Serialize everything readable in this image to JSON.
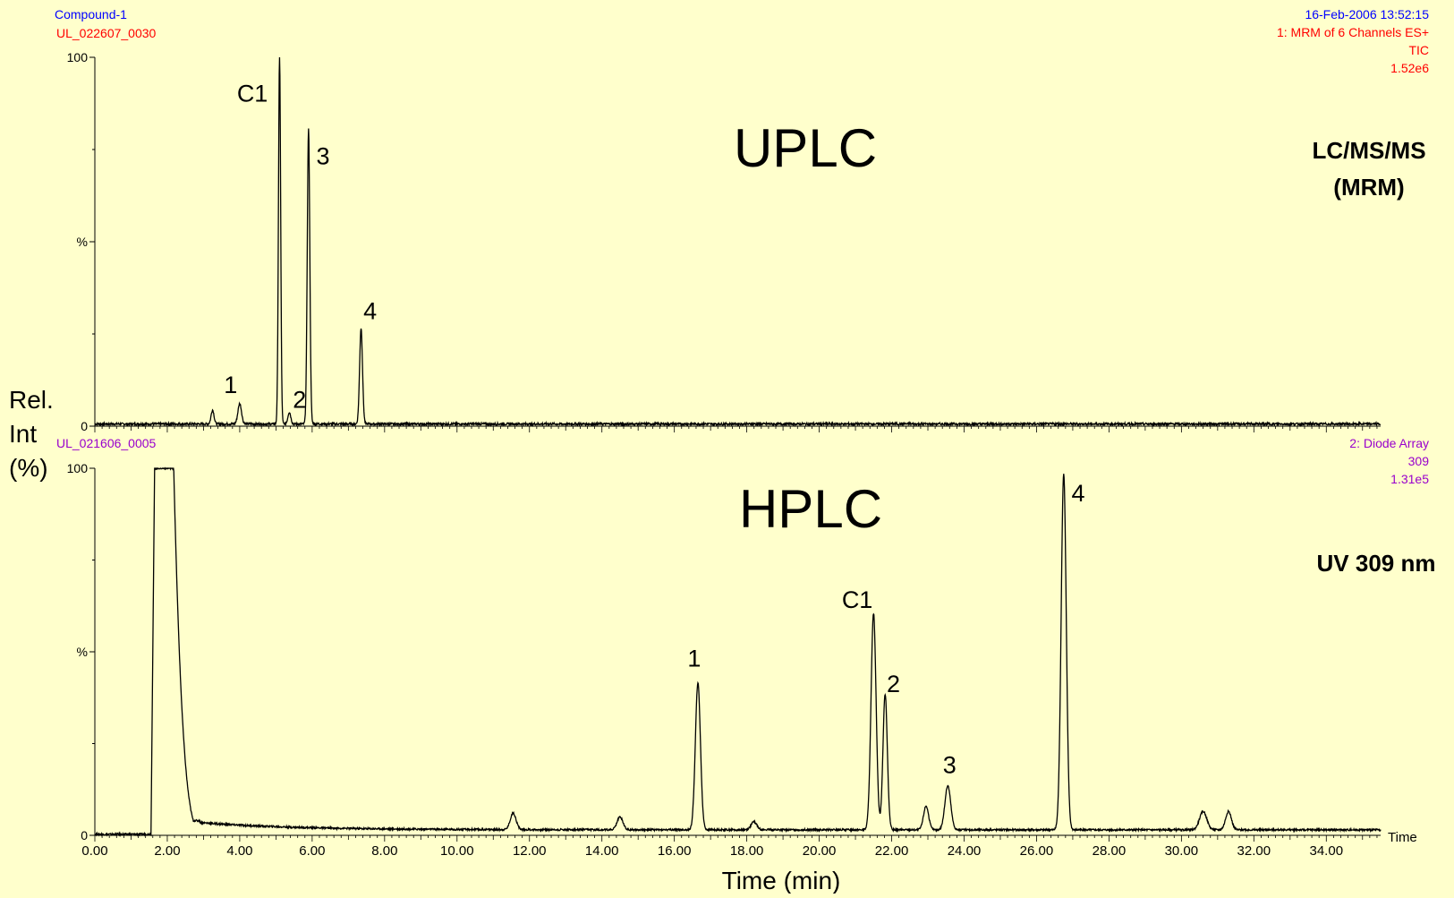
{
  "header": {
    "compound": "Compound-1",
    "timestamp": "16-Feb-2006 13:52:15"
  },
  "shared_labels": {
    "ylabel_lines": [
      "Rel.",
      "Int",
      "(%)"
    ],
    "xlabel": "Time (min)",
    "x_axis_word": "Time"
  },
  "colors": {
    "background": "#ffffcc",
    "trace": "#000000",
    "file_id_top": "#ff0000",
    "compound_label": "#0000ff",
    "file_id_bottom": "#9900cc"
  },
  "chart_data": [
    {
      "type": "line",
      "panel": "top",
      "file_id": "UL_022607_0030",
      "info_lines": [
        "1: MRM of 6 Channels ES+",
        "TIC",
        "1.52e6"
      ],
      "title": "UPLC",
      "side_note_lines": [
        "LC/MS/MS",
        "(MRM)"
      ],
      "xlim": [
        0,
        35.5
      ],
      "ylim": [
        0,
        100
      ],
      "yticks": [
        0,
        50,
        100
      ],
      "ytick_labels": [
        "0",
        "%",
        "100"
      ],
      "peaks": [
        {
          "label": "1",
          "time": 4.0,
          "height": 5.5,
          "width": 0.05
        },
        {
          "label": "",
          "time": 3.25,
          "height": 3.8,
          "width": 0.04
        },
        {
          "label": "C1",
          "time": 5.1,
          "height": 100,
          "width": 0.03
        },
        {
          "label": "2",
          "time": 5.37,
          "height": 3.2,
          "width": 0.04
        },
        {
          "label": "3",
          "time": 5.9,
          "height": 80,
          "width": 0.035
        },
        {
          "label": "4",
          "time": 7.35,
          "height": 26,
          "width": 0.04
        }
      ],
      "baseline_pct": 0.6,
      "annotations": [
        {
          "text": "C1",
          "x": 4.35,
          "y": 88
        },
        {
          "text": "3",
          "x": 6.3,
          "y": 71
        },
        {
          "text": "4",
          "x": 7.6,
          "y": 29
        },
        {
          "text": "1",
          "x": 3.75,
          "y": 9
        },
        {
          "text": "2",
          "x": 5.65,
          "y": 5
        }
      ]
    },
    {
      "type": "line",
      "panel": "bottom",
      "file_id": "UL_021606_0005",
      "info_lines": [
        "2: Diode Array",
        "309",
        "1.31e5"
      ],
      "title": "HPLC",
      "side_note_lines": [
        "UV 309 nm"
      ],
      "xlim": [
        0,
        35.5
      ],
      "ylim": [
        0,
        100
      ],
      "yticks": [
        0,
        50,
        100
      ],
      "ytick_labels": [
        "0",
        "%",
        "100"
      ],
      "xticks": [
        0,
        2,
        4,
        6,
        8,
        10,
        12,
        14,
        16,
        18,
        20,
        22,
        24,
        26,
        28,
        30,
        32,
        34
      ],
      "xtick_labels": [
        "0.00",
        "2.00",
        "4.00",
        "6.00",
        "8.00",
        "10.00",
        "12.00",
        "14.00",
        "16.00",
        "18.00",
        "20.00",
        "22.00",
        "24.00",
        "26.00",
        "28.00",
        "30.00",
        "32.00",
        "34.00"
      ],
      "saturated_peak": {
        "start": 1.55,
        "top_start": 1.65,
        "top_end": 2.15,
        "tail_end": 2.9,
        "height": 100
      },
      "peaks": [
        {
          "label": "",
          "time": 11.55,
          "height": 4.5,
          "width": 0.08
        },
        {
          "label": "",
          "time": 14.5,
          "height": 3.5,
          "width": 0.08
        },
        {
          "label": "1",
          "time": 16.65,
          "height": 40,
          "width": 0.07
        },
        {
          "label": "",
          "time": 18.2,
          "height": 2.2,
          "width": 0.08
        },
        {
          "label": "C1",
          "time": 21.5,
          "height": 59,
          "width": 0.07
        },
        {
          "label": "2",
          "time": 21.82,
          "height": 37,
          "width": 0.06
        },
        {
          "label": "",
          "time": 22.95,
          "height": 6.5,
          "width": 0.07
        },
        {
          "label": "3",
          "time": 23.55,
          "height": 12,
          "width": 0.08
        },
        {
          "label": "4",
          "time": 26.75,
          "height": 97,
          "width": 0.07
        },
        {
          "label": "",
          "time": 30.6,
          "height": 5,
          "width": 0.1
        },
        {
          "label": "",
          "time": 31.3,
          "height": 5,
          "width": 0.08
        }
      ],
      "baseline_pct": 1.5,
      "annotations": [
        {
          "text": "4",
          "x": 27.15,
          "y": 91
        },
        {
          "text": "C1",
          "x": 21.05,
          "y": 62
        },
        {
          "text": "1",
          "x": 16.55,
          "y": 46
        },
        {
          "text": "2",
          "x": 22.05,
          "y": 39
        },
        {
          "text": "3",
          "x": 23.6,
          "y": 17
        }
      ]
    }
  ]
}
